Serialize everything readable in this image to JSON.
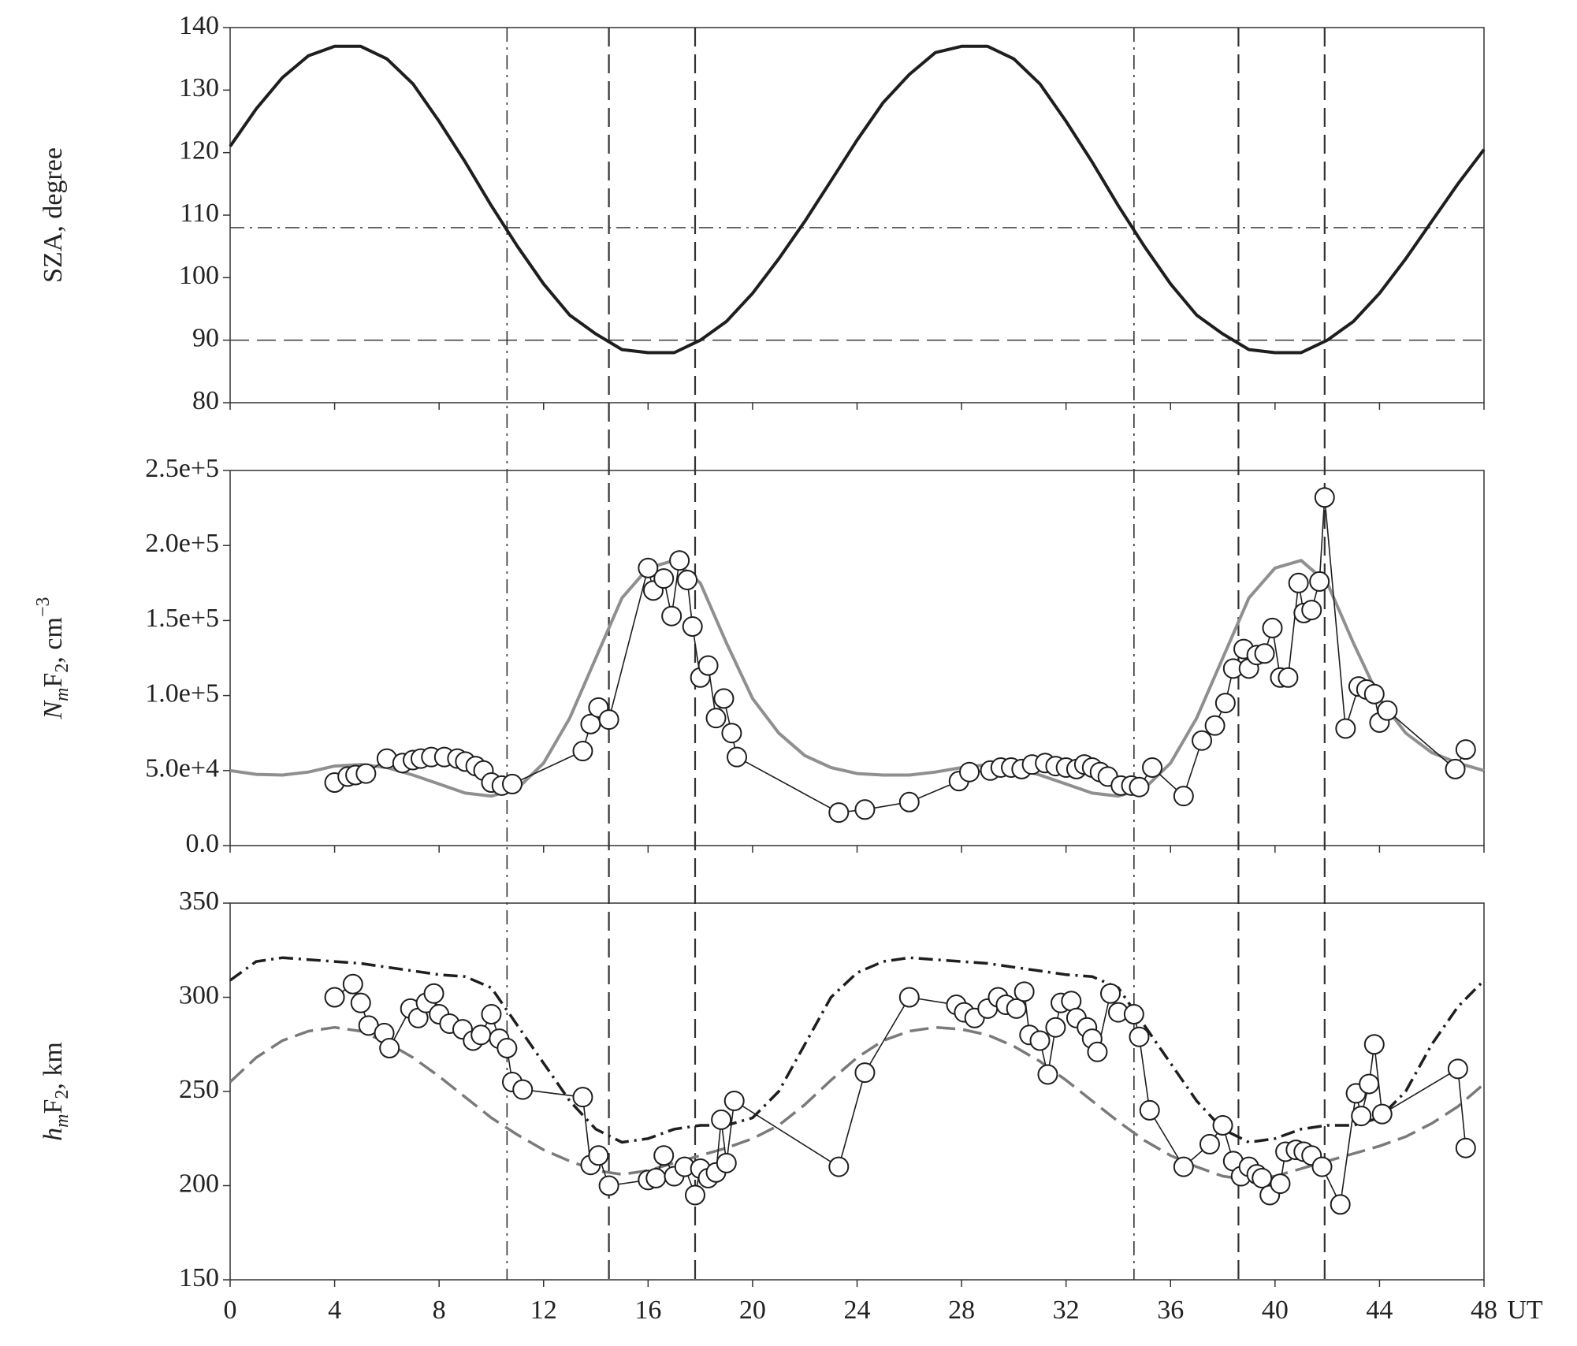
{
  "chart_data": [
    {
      "type": "line",
      "ylabel": "SZA, degree",
      "xlim": [
        0,
        48
      ],
      "xticks": [
        0,
        4,
        8,
        12,
        16,
        20,
        24,
        28,
        32,
        36,
        40,
        44,
        48
      ],
      "show_xtick_labels": false,
      "ylim": [
        80,
        140
      ],
      "yticks": [
        80,
        90,
        100,
        110,
        120,
        130,
        140
      ],
      "hlines": [
        {
          "value": 108,
          "style": "dashdot"
        },
        {
          "value": 90,
          "style": "dashed"
        }
      ],
      "vlines": [
        {
          "value": 10.6,
          "style": "dashdot"
        },
        {
          "value": 14.5,
          "style": "dashed"
        },
        {
          "value": 17.8,
          "style": "dashed"
        },
        {
          "value": 34.6,
          "style": "dashdot"
        },
        {
          "value": 38.6,
          "style": "dashed"
        },
        {
          "value": 41.9,
          "style": "dashed"
        }
      ],
      "series": [
        {
          "style": "line",
          "color": "#1e1e1e",
          "x": [
            0,
            1,
            2,
            3,
            4,
            5,
            6,
            7,
            8,
            9,
            10,
            11,
            12,
            13,
            14,
            15,
            16,
            17,
            18,
            19,
            20,
            21,
            22,
            23,
            24,
            25,
            26,
            27,
            28,
            29,
            30,
            31,
            32,
            33,
            34,
            35,
            36,
            37,
            38,
            39,
            40,
            41,
            42,
            43,
            44,
            45,
            46,
            47,
            48
          ],
          "values": [
            121,
            127,
            132,
            135.5,
            137,
            137,
            135,
            131,
            125,
            118.5,
            111.5,
            105,
            99,
            94,
            91,
            88.5,
            88,
            88,
            90,
            93,
            97.5,
            103,
            109,
            115.5,
            122,
            128,
            132.5,
            136,
            137,
            137,
            135,
            131,
            125,
            118.5,
            111.5,
            105,
            99,
            94,
            91,
            88.5,
            88,
            88,
            90,
            93,
            97.5,
            103,
            109,
            115,
            120.5
          ]
        }
      ]
    },
    {
      "type": "scatter",
      "ylabel_parts": [
        "N",
        "m",
        "F",
        "2",
        ", cm",
        "−3"
      ],
      "xlim": [
        0,
        48
      ],
      "xticks": [
        0,
        4,
        8,
        12,
        16,
        20,
        24,
        28,
        32,
        36,
        40,
        44,
        48
      ],
      "show_xtick_labels": false,
      "ylim": [
        0,
        250000
      ],
      "yticks": [
        {
          "value": 0,
          "label": "0.0"
        },
        {
          "value": 50000,
          "label": "5.0e+4"
        },
        {
          "value": 100000,
          "label": "1.0e+5"
        },
        {
          "value": 150000,
          "label": "1.5e+5"
        },
        {
          "value": 200000,
          "label": "2.0e+5"
        },
        {
          "value": 250000,
          "label": "2.5e+5"
        }
      ],
      "series": [
        {
          "style": "line",
          "color": "#8f8f8f",
          "x": [
            0,
            1,
            2,
            3,
            4,
            5,
            6,
            7,
            8,
            9,
            10,
            11,
            12,
            13,
            14,
            15,
            16,
            17,
            18,
            19,
            20,
            21,
            22,
            23,
            24,
            25,
            26,
            27,
            28,
            29,
            30,
            31,
            32,
            33,
            34,
            35,
            36,
            37,
            38,
            39,
            40,
            41,
            42,
            43,
            44,
            45,
            46,
            47,
            48
          ],
          "values": [
            50000,
            47500,
            47000,
            49000,
            53000,
            54000,
            52000,
            47000,
            41000,
            35000,
            33000,
            38000,
            55000,
            85000,
            125000,
            165000,
            185000,
            190000,
            175000,
            135000,
            98000,
            75000,
            60000,
            52000,
            48000,
            47000,
            47000,
            49000,
            52000,
            54000,
            52000,
            47000,
            41000,
            35000,
            33000,
            38000,
            55000,
            85000,
            125000,
            165000,
            185000,
            190000,
            175000,
            135000,
            98000,
            75000,
            62000,
            55000,
            50000
          ]
        },
        {
          "style": "markers+line",
          "color": "#1e1e1e",
          "x": [
            4.0,
            4.5,
            4.8,
            5.2,
            6.0,
            6.6,
            7.0,
            7.3,
            7.7,
            8.2,
            8.7,
            9.0,
            9.4,
            9.7,
            10.0,
            10.4,
            10.8,
            13.5,
            13.8,
            14.1,
            14.5,
            16.0,
            16.2,
            16.6,
            16.9,
            17.2,
            17.5,
            17.7,
            18.0,
            18.3,
            18.6,
            18.9,
            19.2,
            19.4,
            23.3,
            24.3,
            26.0,
            27.9,
            28.3,
            29.1,
            29.5,
            29.9,
            30.3,
            30.7,
            31.2,
            31.6,
            32.0,
            32.4,
            32.7,
            33.0,
            33.3,
            33.6,
            34.1,
            34.5,
            34.8,
            35.3,
            36.5,
            37.2,
            37.7,
            38.1,
            38.4,
            38.8,
            39.0,
            39.3,
            39.6,
            39.9,
            40.2,
            40.5,
            40.9,
            41.1,
            41.4,
            41.7,
            41.9,
            42.7,
            43.2,
            43.5,
            43.8,
            44.0,
            44.3,
            46.9,
            47.3
          ],
          "values": [
            42000,
            46000,
            47000,
            48000,
            58000,
            55000,
            57000,
            58000,
            59000,
            59000,
            58000,
            56000,
            53000,
            50000,
            42000,
            40000,
            41000,
            63000,
            81000,
            92000,
            84000,
            185000,
            170000,
            178000,
            153000,
            190000,
            177000,
            146000,
            112000,
            120000,
            85000,
            98000,
            75000,
            59000,
            22000,
            24000,
            29000,
            43000,
            49000,
            50000,
            52000,
            52000,
            51000,
            54000,
            55000,
            53000,
            52000,
            51000,
            54000,
            52000,
            49000,
            46000,
            40000,
            40000,
            39000,
            52000,
            33000,
            70000,
            80000,
            95000,
            118000,
            131000,
            118000,
            127000,
            128000,
            145000,
            112000,
            112000,
            175000,
            155000,
            157000,
            176000,
            232000,
            78000,
            106000,
            104000,
            101000,
            82000,
            90000,
            51000,
            64000
          ]
        }
      ]
    },
    {
      "type": "scatter",
      "ylabel_parts": [
        "h",
        "m",
        "F",
        "2",
        ", km"
      ],
      "xlabel": "UT",
      "xlim": [
        0,
        48
      ],
      "xticks": [
        0,
        4,
        8,
        12,
        16,
        20,
        24,
        28,
        32,
        36,
        40,
        44,
        48
      ],
      "ylim": [
        150,
        350
      ],
      "yticks": [
        150,
        200,
        250,
        300,
        350
      ],
      "series": [
        {
          "style": "dashdot",
          "color": "#1e1e1e",
          "x": [
            0,
            1,
            2,
            3,
            4,
            5,
            6,
            7,
            8,
            9,
            10,
            11,
            12,
            13,
            14,
            15,
            16,
            17,
            18,
            19,
            20,
            21,
            22,
            23,
            24,
            25,
            26,
            27,
            28,
            29,
            30,
            31,
            32,
            33,
            34,
            35,
            36,
            37,
            38,
            39,
            40,
            41,
            42,
            43,
            44,
            45,
            46,
            47,
            48
          ],
          "values": [
            309,
            319,
            321,
            320,
            319,
            318,
            316,
            314,
            312,
            311,
            305,
            285,
            265,
            245,
            230,
            223,
            225,
            230,
            232,
            232,
            236,
            250,
            275,
            300,
            313,
            319,
            321,
            320,
            319,
            318,
            316,
            314,
            312,
            311,
            305,
            285,
            265,
            245,
            230,
            223,
            225,
            230,
            232,
            232,
            236,
            250,
            275,
            295,
            309
          ]
        },
        {
          "style": "dashed",
          "color": "#7a7a7a",
          "x": [
            0,
            1,
            2,
            3,
            4,
            5,
            6,
            7,
            8,
            9,
            10,
            11,
            12,
            13,
            14,
            15,
            16,
            17,
            18,
            19,
            20,
            21,
            22,
            23,
            24,
            25,
            26,
            27,
            28,
            29,
            30,
            31,
            32,
            33,
            34,
            35,
            36,
            37,
            38,
            39,
            40,
            41,
            42,
            43,
            44,
            45,
            46,
            47,
            48
          ],
          "values": [
            255,
            268,
            277,
            282,
            284,
            282,
            276,
            268,
            258,
            247,
            236,
            227,
            219,
            213,
            208,
            206,
            208,
            212,
            216,
            220,
            225,
            232,
            243,
            256,
            268,
            277,
            282,
            284,
            283,
            280,
            274,
            266,
            256,
            245,
            234,
            224,
            216,
            210,
            205,
            203,
            205,
            209,
            213,
            217,
            221,
            226,
            233,
            242,
            254
          ]
        },
        {
          "style": "markers+line",
          "color": "#1e1e1e",
          "x": [
            4.0,
            4.7,
            5.0,
            5.3,
            5.9,
            6.1,
            6.9,
            7.2,
            7.5,
            7.8,
            8.0,
            8.4,
            8.9,
            9.3,
            9.6,
            10.0,
            10.3,
            10.6,
            10.8,
            11.2,
            13.5,
            13.8,
            14.1,
            14.5,
            16.0,
            16.3,
            16.6,
            17.0,
            17.4,
            17.8,
            18.0,
            18.3,
            18.6,
            18.8,
            19.0,
            19.3,
            23.3,
            24.3,
            26.0,
            27.8,
            28.1,
            28.5,
            29.0,
            29.4,
            29.7,
            30.1,
            30.4,
            30.6,
            31.0,
            31.3,
            31.6,
            31.8,
            32.2,
            32.4,
            32.8,
            33.0,
            33.2,
            33.7,
            34.0,
            34.6,
            34.8,
            35.2,
            36.5,
            37.5,
            38.0,
            38.4,
            38.7,
            39.0,
            39.3,
            39.5,
            39.8,
            40.2,
            40.4,
            40.8,
            41.1,
            41.4,
            41.8,
            42.5,
            43.1,
            43.3,
            43.6,
            43.8,
            44.1,
            47.0,
            47.3
          ],
          "values": [
            300,
            307,
            297,
            285,
            281,
            273,
            294,
            289,
            297,
            302,
            291,
            286,
            283,
            277,
            280,
            291,
            278,
            273,
            255,
            251,
            247,
            211,
            216,
            200,
            203,
            204,
            216,
            205,
            210,
            195,
            209,
            204,
            207,
            235,
            212,
            245,
            210,
            260,
            300,
            296,
            292,
            289,
            294,
            300,
            296,
            294,
            303,
            280,
            277,
            259,
            284,
            297,
            298,
            289,
            284,
            278,
            271,
            302,
            292,
            291,
            279,
            240,
            210,
            222,
            232,
            213,
            205,
            210,
            206,
            204,
            195,
            201,
            218,
            219,
            218,
            216,
            210,
            190,
            249,
            237,
            254,
            275,
            238,
            262,
            220
          ]
        }
      ]
    }
  ]
}
